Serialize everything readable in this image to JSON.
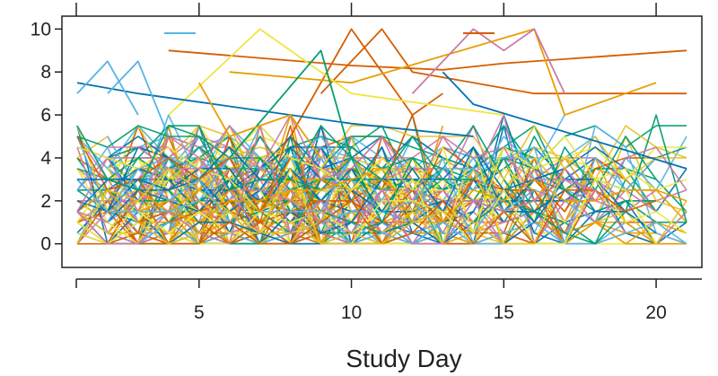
{
  "chart_data": {
    "type": "line",
    "title": "",
    "xlabel": "Study Day",
    "ylabel": "",
    "xlim": [
      0.5,
      21.5
    ],
    "ylim": [
      -1.1,
      10.6
    ],
    "x_ticks": [
      5,
      10,
      15,
      20
    ],
    "y_ticks": [
      0,
      2,
      4,
      6,
      8,
      10
    ],
    "grid": false,
    "legend": "top (unlabeled line swatches)",
    "colors": [
      "#E69F00",
      "#56B4E9",
      "#009E73",
      "#F0E442",
      "#0072B2",
      "#D55E00",
      "#CC79A7",
      "#E6C229"
    ],
    "highlight_series": [
      {
        "color": "#D55E00",
        "points": [
          [
            4,
            9
          ],
          [
            10,
            8.3
          ],
          [
            13,
            8.1
          ],
          [
            15,
            8.4
          ],
          [
            21,
            9
          ]
        ]
      },
      {
        "color": "#D55E00",
        "points": [
          [
            8,
            5
          ],
          [
            10,
            10
          ],
          [
            11,
            8
          ],
          [
            12,
            6
          ],
          [
            13,
            7
          ]
        ]
      },
      {
        "color": "#D55E00",
        "points": [
          [
            9,
            7
          ],
          [
            11,
            10
          ],
          [
            12,
            8
          ],
          [
            16,
            7
          ],
          [
            21,
            7
          ]
        ]
      },
      {
        "color": "#E69F00",
        "points": [
          [
            6,
            8
          ],
          [
            10,
            7.5
          ],
          [
            16,
            10
          ],
          [
            17,
            6
          ],
          [
            20,
            7.5
          ]
        ]
      },
      {
        "color": "#F0E442",
        "points": [
          [
            4,
            6
          ],
          [
            7,
            10
          ],
          [
            10,
            7
          ],
          [
            15,
            6
          ]
        ]
      },
      {
        "color": "#CC79A7",
        "points": [
          [
            12,
            7
          ],
          [
            14,
            10
          ],
          [
            15,
            9
          ],
          [
            16,
            10
          ],
          [
            17,
            7
          ]
        ]
      },
      {
        "color": "#0072B2",
        "points": [
          [
            1,
            7.5
          ],
          [
            3,
            7
          ],
          [
            5,
            6.6
          ],
          [
            10,
            5.6
          ],
          [
            14,
            5
          ]
        ]
      },
      {
        "color": "#009E73",
        "points": [
          [
            6,
            4
          ],
          [
            9,
            9
          ],
          [
            10,
            4
          ]
        ]
      },
      {
        "color": "#56B4E9",
        "points": [
          [
            1,
            7
          ],
          [
            2,
            8.5
          ],
          [
            3,
            6
          ]
        ]
      },
      {
        "color": "#56B4E9",
        "points": [
          [
            2,
            7
          ],
          [
            3,
            8.5
          ],
          [
            4,
            5
          ]
        ]
      },
      {
        "color": "#0072B2",
        "points": [
          [
            13,
            8
          ],
          [
            14,
            6.5
          ],
          [
            21,
            3.5
          ]
        ]
      },
      {
        "color": "#E69F00",
        "points": [
          [
            5,
            7.5
          ],
          [
            6,
            5
          ],
          [
            8,
            6
          ],
          [
            9,
            4
          ]
        ]
      }
    ],
    "background_series": {
      "count": 160,
      "x_range": [
        1,
        21
      ],
      "note": "many overlapping per-subject daily series concentrated between 0 and 5"
    }
  }
}
